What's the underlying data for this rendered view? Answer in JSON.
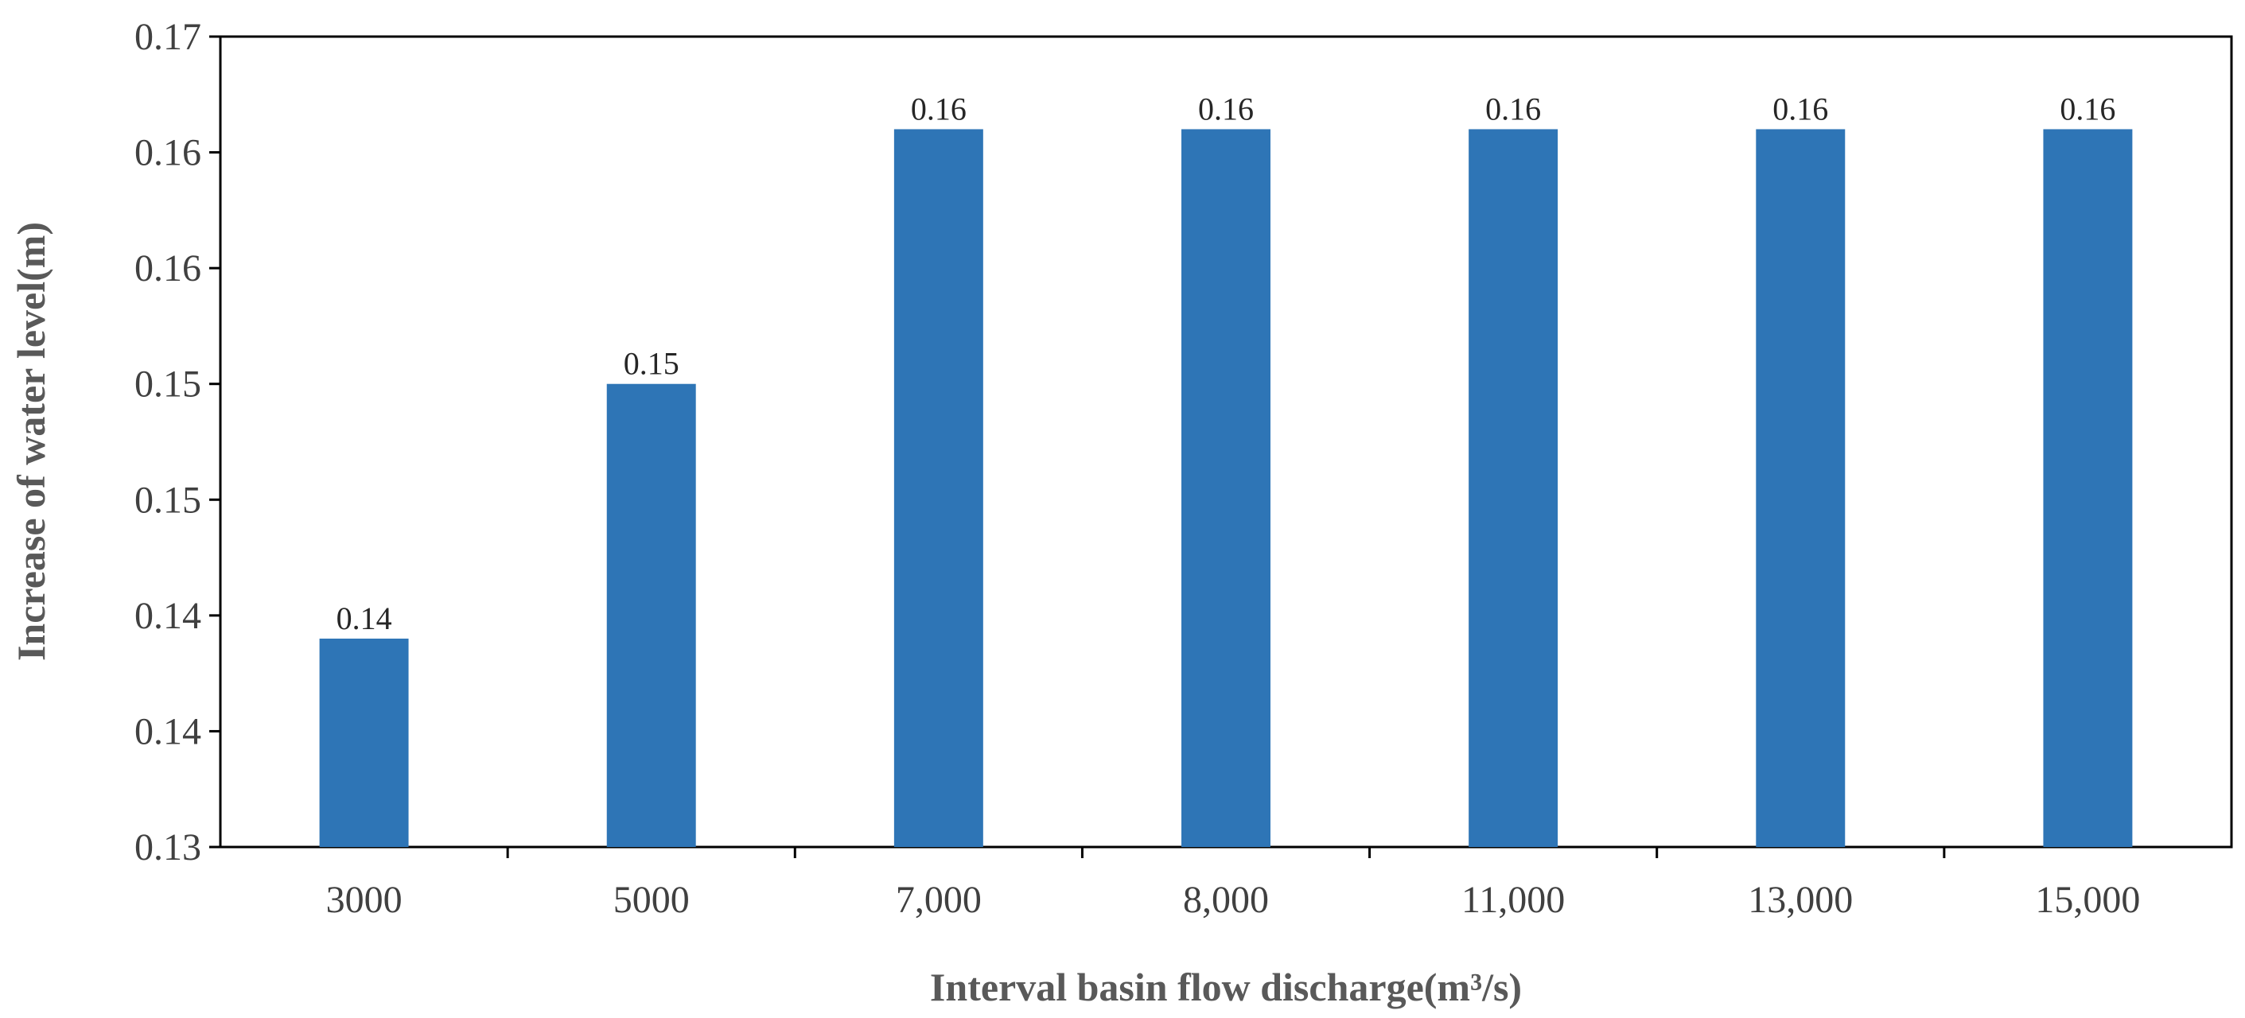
{
  "chart_data": {
    "type": "bar",
    "xlabel": "Interval basin flow discharge(m³/s)",
    "ylabel": "Increase of water level(m)",
    "categories": [
      "3000",
      "5000",
      "7,000",
      "8,000",
      "11,000",
      "13,000",
      "15,000"
    ],
    "values": [
      0.139,
      0.15,
      0.161,
      0.161,
      0.161,
      0.161,
      0.161
    ],
    "data_labels": [
      "0.14",
      "0.15",
      "0.16",
      "0.16",
      "0.16",
      "0.16",
      "0.16"
    ],
    "ylim": [
      0.13,
      0.165
    ],
    "yticks": [
      0.13,
      0.135,
      0.14,
      0.145,
      0.15,
      0.155,
      0.16,
      0.165
    ],
    "ytick_labels": [
      "0.13",
      "0.14",
      "0.14",
      "0.15",
      "0.15",
      "0.16",
      "0.16",
      "0.17"
    ],
    "bar_color": "#2e75b6",
    "grid": false,
    "legend": "none"
  }
}
